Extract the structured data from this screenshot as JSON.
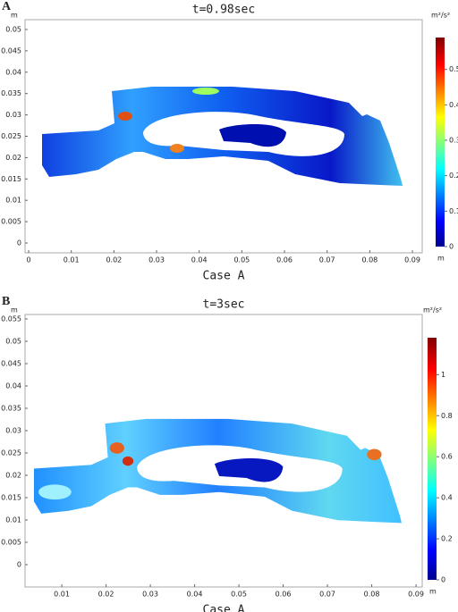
{
  "chart_data": [
    {
      "type": "contour",
      "panel": "A",
      "title": "t=0.98sec",
      "xlabel": "Case A",
      "x_unit": "m",
      "y_unit": "m",
      "colorbar_unit": "m²/s²",
      "colorbar_unit_below": "m",
      "colormap": "jet",
      "xlim": [
        -0.00084,
        0.0923
      ],
      "xticks": [
        0,
        0.01,
        0.02,
        0.03,
        0.04,
        0.05,
        0.06,
        0.07,
        0.08,
        0.09
      ],
      "ylim": [
        -0.0023,
        0.0523
      ],
      "yticks": [
        0,
        0.005,
        0.01,
        0.015,
        0.02,
        0.025,
        0.03,
        0.035,
        0.04,
        0.045,
        0.05
      ],
      "colorbar_lim": [
        0,
        0.59
      ],
      "colorbar_ticks": [
        0,
        0.1,
        0.2,
        0.3,
        0.4,
        0.5
      ]
    },
    {
      "type": "contour",
      "panel": "B",
      "title": "t=3sec",
      "xlabel": "Case A",
      "x_unit": "m",
      "y_unit": "m",
      "colorbar_unit": "m²/s²",
      "colorbar_unit_below": "m",
      "colormap": "jet",
      "xlim": [
        0.0017,
        0.0914
      ],
      "xticks": [
        0.01,
        0.02,
        0.03,
        0.04,
        0.05,
        0.06,
        0.07,
        0.08,
        0.09
      ],
      "ylim": [
        -0.005,
        0.056
      ],
      "yticks": [
        0,
        0.005,
        0.01,
        0.015,
        0.02,
        0.025,
        0.03,
        0.035,
        0.04,
        0.045,
        0.05,
        0.055
      ],
      "colorbar_lim": [
        0,
        1.18
      ],
      "colorbar_ticks": [
        0,
        0.2,
        0.4,
        0.6,
        0.8,
        1
      ]
    }
  ]
}
